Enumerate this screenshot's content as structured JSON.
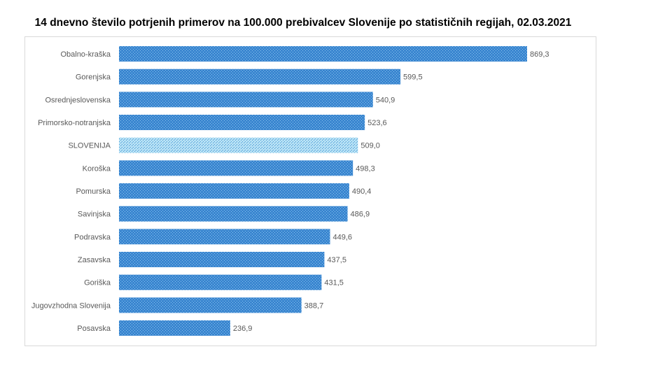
{
  "chart_data": {
    "type": "bar",
    "orientation": "horizontal",
    "title": "14 dnevno število potrjenih primerov na 100.000 prebivalcev Slovenije po statističnih regijah, 02.03.2021",
    "categories": [
      "Obalno-kraška",
      "Gorenjska",
      "Osrednjeslovenska",
      "Primorsko-notranjska",
      "SLOVENIJA",
      "Koroška",
      "Pomurska",
      "Savinjska",
      "Podravska",
      "Zasavska",
      "Goriška",
      "Jugovzhodna Slovenija",
      "Posavska"
    ],
    "values": [
      869.3,
      599.5,
      540.9,
      523.6,
      509.0,
      498.3,
      490.4,
      486.9,
      449.6,
      437.5,
      431.5,
      388.7,
      236.9
    ],
    "value_labels": [
      "869,3",
      "599,5",
      "540,9",
      "523,6",
      "509,0",
      "498,3",
      "490,4",
      "486,9",
      "449,6",
      "437,5",
      "431,5",
      "388,7",
      "236,9"
    ],
    "xlim": [
      0,
      869.3
    ],
    "grid": false,
    "colors": {
      "bar": "#3a86d0",
      "highlight": "#9fd3ef"
    },
    "highlight_category": "SLOVENIJA"
  }
}
